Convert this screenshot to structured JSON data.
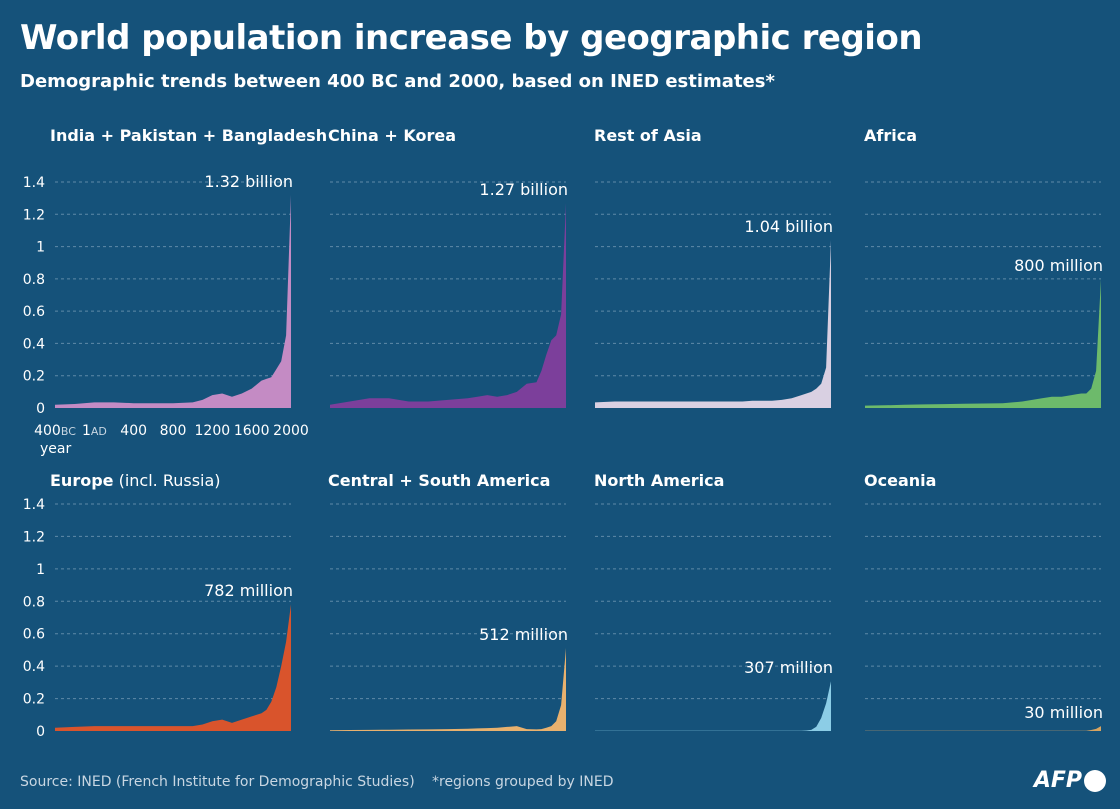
{
  "title": "World population increase by geographic region",
  "subtitle": "Demographic trends between 400 BC and 2000, based on INED estimates*",
  "source": "Source: INED (French Institute for Demographic Studies)",
  "note": "*regions grouped by INED",
  "logo": "AFP",
  "chart_data": {
    "type": "area",
    "xlabel": "year",
    "x_ticks": [
      {
        "value": -400,
        "label": "400",
        "suffix": "BC"
      },
      {
        "value": 1,
        "label": "1",
        "suffix": "AD"
      },
      {
        "value": 400,
        "label": "400"
      },
      {
        "value": 800,
        "label": "800"
      },
      {
        "value": 1200,
        "label": "1200"
      },
      {
        "value": 1600,
        "label": "1600"
      },
      {
        "value": 2000,
        "label": "2000"
      }
    ],
    "y_ticks": [
      "0",
      "0.2",
      "0.4",
      "0.6",
      "0.8",
      "1",
      "1.2",
      "1.4"
    ],
    "ylim": [
      0,
      1.4
    ],
    "xlim": [
      -400,
      2000
    ],
    "unit": "billions",
    "grid": true,
    "x": [
      -400,
      -200,
      1,
      200,
      400,
      600,
      800,
      1000,
      1100,
      1200,
      1300,
      1400,
      1500,
      1600,
      1700,
      1750,
      1800,
      1850,
      1900,
      1950,
      2000
    ],
    "panels": [
      {
        "name": "India + Pakistan + Bangladesh",
        "color": "#c48bc4",
        "label": "1.32 billion",
        "values": [
          0.02,
          0.025,
          0.035,
          0.035,
          0.03,
          0.03,
          0.03,
          0.035,
          0.05,
          0.08,
          0.09,
          0.07,
          0.09,
          0.12,
          0.17,
          0.18,
          0.19,
          0.24,
          0.29,
          0.45,
          1.32
        ]
      },
      {
        "name": "China + Korea",
        "color": "#7c3f9b",
        "label": "1.27 billion",
        "values": [
          0.02,
          0.04,
          0.06,
          0.06,
          0.04,
          0.04,
          0.05,
          0.06,
          0.07,
          0.08,
          0.07,
          0.08,
          0.1,
          0.15,
          0.16,
          0.23,
          0.33,
          0.42,
          0.45,
          0.58,
          1.27
        ]
      },
      {
        "name": "Rest of Asia",
        "color": "#d9d0e2",
        "label": "1.04 billion",
        "values": [
          0.035,
          0.04,
          0.04,
          0.04,
          0.04,
          0.04,
          0.04,
          0.04,
          0.04,
          0.045,
          0.045,
          0.045,
          0.05,
          0.06,
          0.08,
          0.09,
          0.1,
          0.12,
          0.15,
          0.25,
          1.04
        ]
      },
      {
        "name": "Africa",
        "color": "#6dba6b",
        "label": "800 million",
        "values": [
          0.015,
          0.017,
          0.02,
          0.022,
          0.024,
          0.026,
          0.028,
          0.03,
          0.035,
          0.04,
          0.05,
          0.06,
          0.07,
          0.07,
          0.08,
          0.085,
          0.09,
          0.09,
          0.12,
          0.23,
          0.8
        ]
      },
      {
        "name": "Europe",
        "name_suffix": "(incl. Russia)",
        "color": "#d9542c",
        "label": "782 million",
        "values": [
          0.02,
          0.025,
          0.03,
          0.03,
          0.03,
          0.03,
          0.03,
          0.03,
          0.04,
          0.06,
          0.07,
          0.05,
          0.07,
          0.09,
          0.11,
          0.13,
          0.18,
          0.27,
          0.4,
          0.55,
          0.782
        ]
      },
      {
        "name": "Central + South America",
        "color": "#e8b16e",
        "label": "512 million",
        "values": [
          0.005,
          0.006,
          0.007,
          0.008,
          0.009,
          0.01,
          0.012,
          0.014,
          0.016,
          0.018,
          0.02,
          0.025,
          0.03,
          0.012,
          0.01,
          0.012,
          0.02,
          0.03,
          0.06,
          0.16,
          0.512
        ]
      },
      {
        "name": "North America",
        "color": "#8ccde6",
        "label": "307 million",
        "values": [
          0.001,
          0.001,
          0.001,
          0.001,
          0.001,
          0.001,
          0.001,
          0.001,
          0.001,
          0.002,
          0.002,
          0.002,
          0.002,
          0.002,
          0.002,
          0.003,
          0.007,
          0.026,
          0.08,
          0.17,
          0.307
        ]
      },
      {
        "name": "Oceania",
        "color": "#d8a460",
        "label": "30 million",
        "values": [
          0.001,
          0.001,
          0.001,
          0.001,
          0.001,
          0.001,
          0.001,
          0.001,
          0.001,
          0.001,
          0.001,
          0.001,
          0.002,
          0.002,
          0.002,
          0.002,
          0.002,
          0.002,
          0.006,
          0.013,
          0.03
        ]
      }
    ]
  }
}
